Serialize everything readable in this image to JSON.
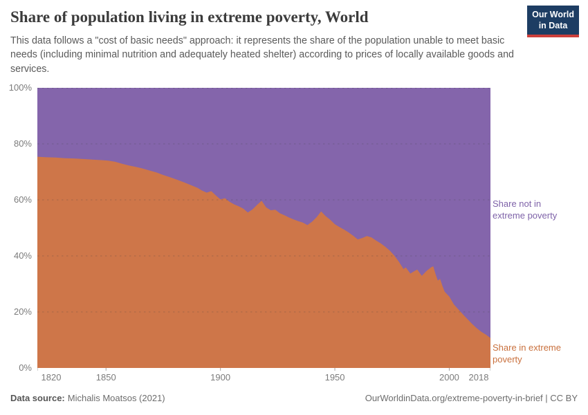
{
  "header": {
    "title": "Share of population living in extreme poverty, World",
    "subtitle": "This data follows a \"cost of basic needs\" approach: it represents the share of the population unable to meet basic needs (including minimal nutrition and adequately heated shelter) according to prices of locally available goods and services.",
    "logo": {
      "line1": "Our World",
      "line2": "in Data",
      "bg_color": "#1d3d63",
      "bar_color": "#cc3f3b"
    }
  },
  "chart_data": {
    "type": "area",
    "stacked": true,
    "stack_total": 100,
    "title": "Share of population living in extreme poverty, World",
    "xlabel": "",
    "ylabel": "",
    "xlim": [
      1820,
      2018
    ],
    "ylim": [
      0,
      100
    ],
    "grid": "dashed horizontal gridlines at 20% intervals",
    "legend_position": "labels at right edge of plot",
    "x": [
      1820,
      1824,
      1828,
      1832,
      1836,
      1840,
      1844,
      1848,
      1851,
      1854,
      1857,
      1860,
      1863,
      1866,
      1869,
      1872,
      1875,
      1878,
      1881,
      1884,
      1887,
      1890,
      1892,
      1894,
      1896,
      1898,
      1900,
      1902,
      1904,
      1906,
      1908,
      1910,
      1912,
      1914,
      1916,
      1918,
      1920,
      1922,
      1924,
      1926,
      1928,
      1930,
      1932,
      1934,
      1936,
      1938,
      1940,
      1942,
      1944,
      1946,
      1948,
      1950,
      1952,
      1954,
      1956,
      1958,
      1960,
      1962,
      1964,
      1966,
      1968,
      1970,
      1972,
      1974,
      1976,
      1978,
      1980,
      1981,
      1983,
      1985,
      1986,
      1988,
      1990,
      1992,
      1993,
      1994,
      1995,
      1996,
      1997,
      1998,
      2000,
      2002,
      2004,
      2006,
      2008,
      2010,
      2012,
      2014,
      2016,
      2017,
      2018
    ],
    "series": [
      {
        "name": "Share in extreme poverty",
        "color": "#ce7649",
        "label_color": "#c9703d",
        "values": [
          75.4,
          75.2,
          75.1,
          74.9,
          74.8,
          74.6,
          74.4,
          74.2,
          74.0,
          73.6,
          72.9,
          72.3,
          71.8,
          71.2,
          70.5,
          69.8,
          68.9,
          68.1,
          67.2,
          66.3,
          65.3,
          64.3,
          63.3,
          62.6,
          63.1,
          61.6,
          60.2,
          60.6,
          59.3,
          58.4,
          57.7,
          56.9,
          55.5,
          56.6,
          58.2,
          59.7,
          57.3,
          56.3,
          56.5,
          55.2,
          54.5,
          53.7,
          53.0,
          52.4,
          51.9,
          51.0,
          52.2,
          53.8,
          55.9,
          54.2,
          52.9,
          51.3,
          50.3,
          49.4,
          48.4,
          47.2,
          45.9,
          46.4,
          47.1,
          46.6,
          45.5,
          44.5,
          43.3,
          41.9,
          40.1,
          37.9,
          35.3,
          35.9,
          33.7,
          34.7,
          35.1,
          32.9,
          34.6,
          35.9,
          36.3,
          33.5,
          31.2,
          31.8,
          29.3,
          27.2,
          25.5,
          22.7,
          20.9,
          19.1,
          17.4,
          15.7,
          14.2,
          12.9,
          11.9,
          11.3,
          10.7
        ]
      },
      {
        "name": "Share not in extreme poverty",
        "color": "#8465ab",
        "label_color": "#7e62a8",
        "derived": "stacked complement: 100 minus 'Share in extreme poverty' values"
      }
    ],
    "yticks": [
      {
        "value": 0,
        "label": "0%"
      },
      {
        "value": 20,
        "label": "20%"
      },
      {
        "value": 40,
        "label": "40%"
      },
      {
        "value": 60,
        "label": "60%"
      },
      {
        "value": 80,
        "label": "80%"
      },
      {
        "value": 100,
        "label": "100%"
      }
    ],
    "xticks": [
      {
        "value": 1820,
        "label": "1820"
      },
      {
        "value": 1850,
        "label": "1850"
      },
      {
        "value": 1900,
        "label": "1900"
      },
      {
        "value": 1950,
        "label": "1950"
      },
      {
        "value": 2000,
        "label": "2000"
      },
      {
        "value": 2018,
        "label": "2018"
      }
    ],
    "annotations": [
      {
        "text": "Share not in extreme poverty",
        "color": "#7e62a8"
      },
      {
        "text": "Share in extreme poverty",
        "color": "#c9703d"
      }
    ]
  },
  "footer": {
    "source_label": "Data source:",
    "source": "Michalis Moatsos (2021)",
    "credit": "OurWorldinData.org/extreme-poverty-in-brief | CC BY"
  }
}
